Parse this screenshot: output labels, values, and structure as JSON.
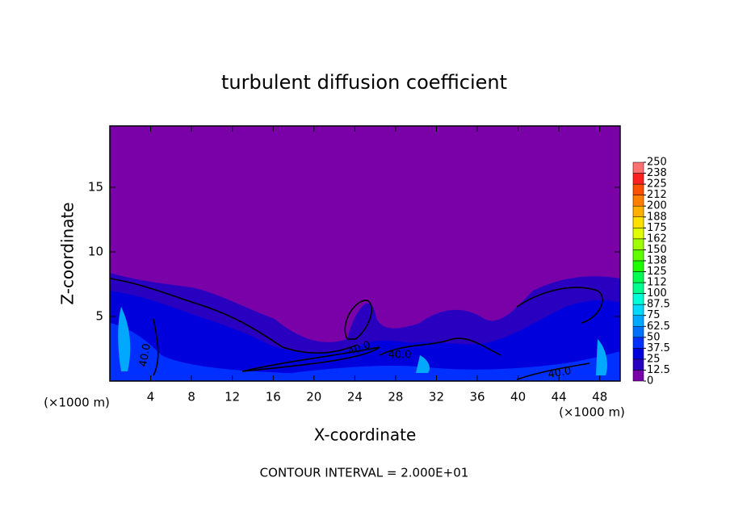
{
  "chart_data": {
    "type": "contour",
    "title": "turbulent diffusion coefficient",
    "xlabel": "X-coordinate",
    "ylabel": "Z-coordinate",
    "x_unit_labels": [
      "(×1000 m)",
      "(×1000 m)"
    ],
    "xlim": [
      0,
      50
    ],
    "xticks": [
      4,
      8,
      12,
      16,
      20,
      24,
      28,
      32,
      36,
      40,
      44,
      48
    ],
    "ylim": [
      0,
      19.75
    ],
    "yticks": [
      5,
      10,
      15
    ],
    "contour_labels": [
      "40.0",
      "40.0",
      "40.0",
      "40.0"
    ],
    "footer": "CONTOUR INTERVAL = 2.000E+01",
    "colorbar": {
      "lim": [
        0,
        250
      ],
      "ticks": [
        0,
        12.5,
        25,
        37.5,
        50,
        62.5,
        75,
        87.5,
        100,
        {
          "value": 112.5,
          "label": "112"
        },
        125,
        {
          "value": 137.5,
          "label": "138"
        },
        150,
        {
          "value": 162.5,
          "label": "162"
        },
        175,
        {
          "value": 187.5,
          "label": "188"
        },
        200,
        {
          "value": 212.5,
          "label": "212"
        },
        225,
        {
          "value": 237.5,
          "label": "238"
        },
        250
      ],
      "colors": [
        "#7a00a8",
        "#2a00c0",
        "#0000dd",
        "#0030ff",
        "#0070ff",
        "#00a8ff",
        "#00d8ff",
        "#00ffd8",
        "#00ff90",
        "#00ff50",
        "#20ff00",
        "#60ff00",
        "#a0ff00",
        "#e0ff00",
        "#ffe000",
        "#ffb000",
        "#ff8000",
        "#ff5000",
        "#ff2020",
        "#ff7070"
      ]
    }
  }
}
